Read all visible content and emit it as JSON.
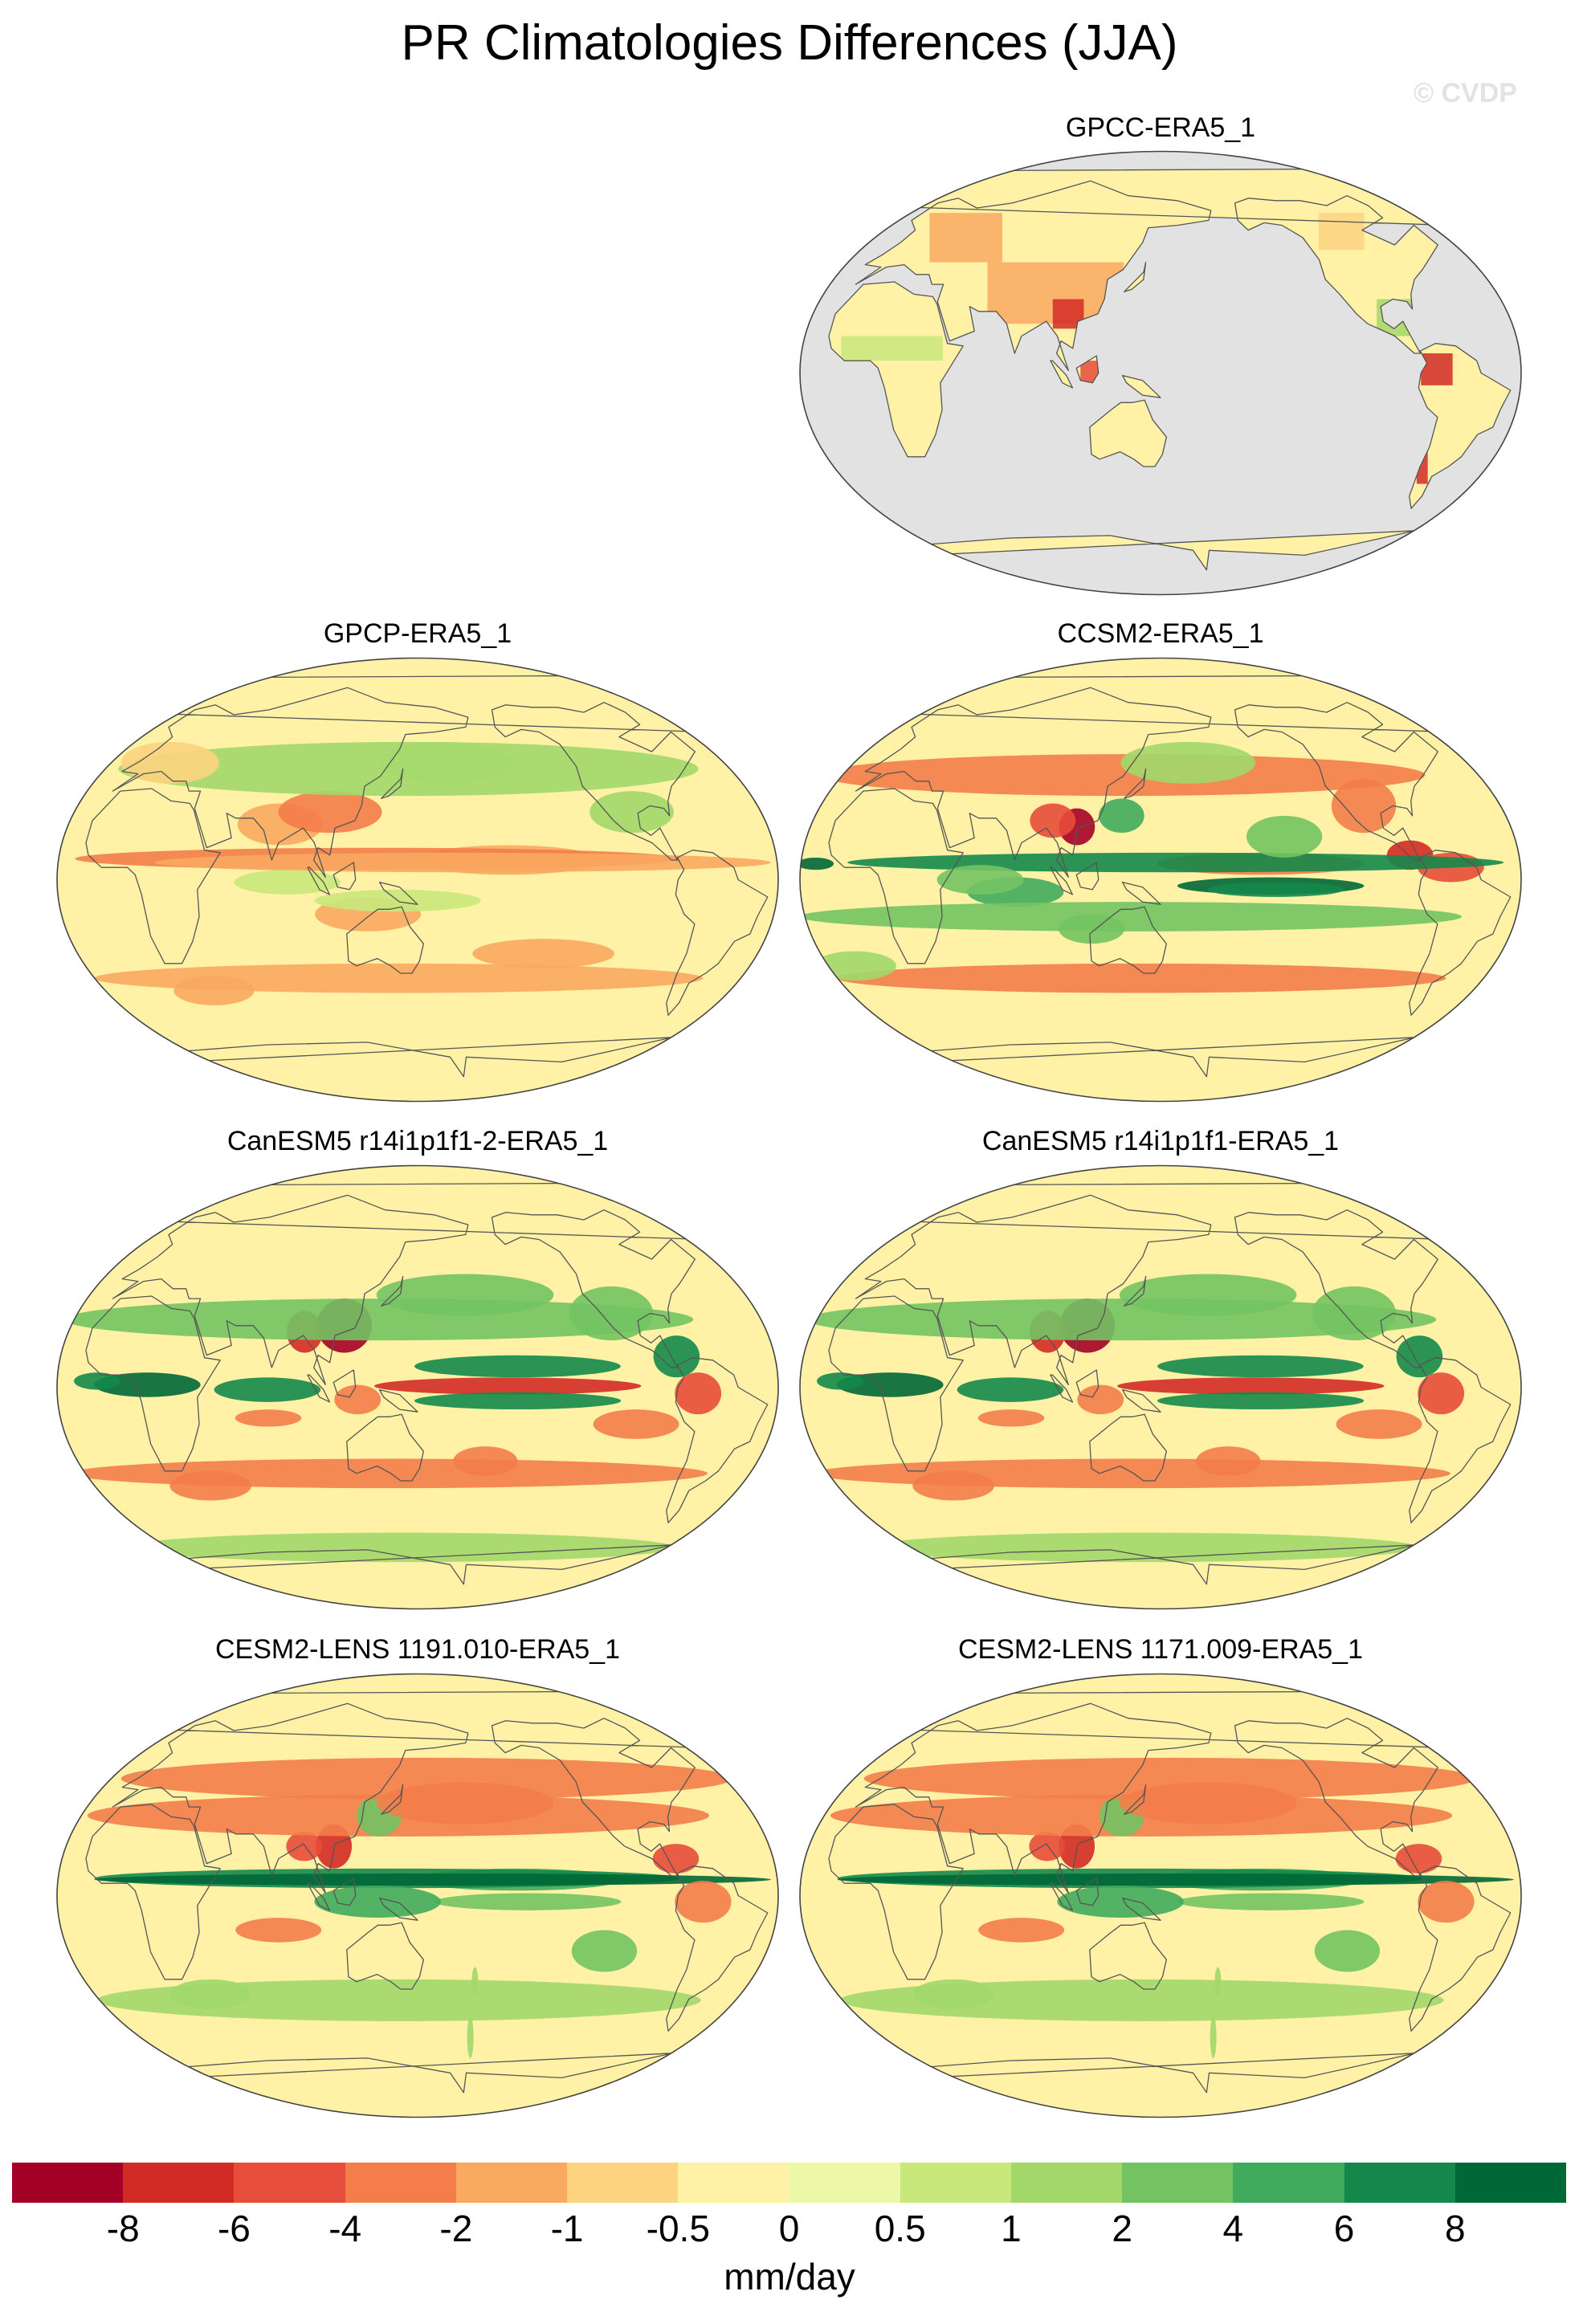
{
  "title": "PR Climatologies Differences (JJA)",
  "watermark": "© CVDP",
  "chart_data": [
    {
      "type": "heatmap",
      "title": "GPCC-ERA5_1",
      "pattern": "land-only",
      "land_only": true
    },
    {
      "type": "heatmap",
      "title": "GPCP-ERA5_1",
      "pattern": "weak"
    },
    {
      "type": "heatmap",
      "title": "CCSM2-ERA5_1",
      "pattern": "strong"
    },
    {
      "type": "heatmap",
      "title": "CanESM5 r14i1p1f1-2-ERA5_1",
      "pattern": "canesm"
    },
    {
      "type": "heatmap",
      "title": "CanESM5 r14i1p1f1-ERA5_1",
      "pattern": "canesm"
    },
    {
      "type": "heatmap",
      "title": "CESM2-LENS 1191.010-ERA5_1",
      "pattern": "cesm"
    },
    {
      "type": "heatmap",
      "title": "CESM2-LENS 1171.009-ERA5_1",
      "pattern": "cesm"
    }
  ],
  "colorbar": {
    "unit": "mm/day",
    "tick_labels": [
      "-8",
      "-6",
      "-4",
      "-2",
      "-1",
      "-0.5",
      "0",
      "0.5",
      "1",
      "2",
      "4",
      "6",
      "8"
    ],
    "colors": [
      "#a50026",
      "#d22b26",
      "#e64d3a",
      "#f47d4a",
      "#f9a960",
      "#fdd380",
      "#fff2a6",
      "#ecf8a8",
      "#c8e87c",
      "#a2d86a",
      "#73c363",
      "#41ab5d",
      "#14884a",
      "#006837"
    ]
  }
}
